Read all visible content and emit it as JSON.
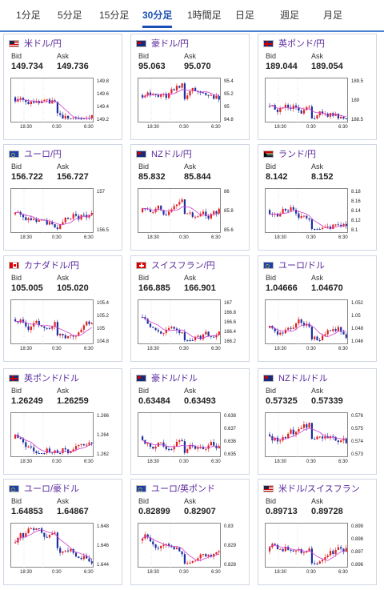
{
  "tabs": [
    "1分足",
    "5分足",
    "15分足",
    "30分足",
    "1時間足",
    "日足",
    "週足",
    "月足"
  ],
  "active_tab": "30分足",
  "labels": {
    "bid": "Bid",
    "ask": "Ask"
  },
  "colors": {
    "accent": "#1a4fb5",
    "pair_name": "#5a2a9c",
    "candle_up": "#e02020",
    "candle_down": "#1f2fa0",
    "ma_line": "#d040d0"
  },
  "cards": [
    {
      "name": "米ドル/円",
      "flag": "us",
      "bid": "149.734",
      "ask": "149.736",
      "yticks": [
        "149.8",
        "149.6",
        "149.4",
        "149.2"
      ],
      "xticks": [
        "18:30",
        "0:30",
        "6:30"
      ]
    },
    {
      "name": "豪ドル/円",
      "flag": "au",
      "bid": "95.063",
      "ask": "95.070",
      "yticks": [
        "95.4",
        "95.2",
        "95",
        "94.8"
      ],
      "xticks": [
        "18:30",
        "0:30",
        "6:30"
      ]
    },
    {
      "name": "英ポンド/円",
      "flag": "gb",
      "bid": "189.044",
      "ask": "189.054",
      "yticks": [
        "189.5",
        "189",
        "188.5"
      ],
      "xticks": [
        "18:30",
        "0:30",
        "6:30"
      ]
    },
    {
      "name": "ユーロ/円",
      "flag": "eu",
      "bid": "156.722",
      "ask": "156.727",
      "yticks": [
        "157",
        "156.5"
      ],
      "xticks": [
        "18:30",
        "0:30",
        "6:30"
      ]
    },
    {
      "name": "NZドル/円",
      "flag": "nz",
      "bid": "85.832",
      "ask": "85.844",
      "yticks": [
        "86",
        "85.8",
        "85.6"
      ],
      "xticks": [
        "18:30",
        "0:30",
        "6:30"
      ]
    },
    {
      "name": "ランド/円",
      "flag": "za",
      "bid": "8.142",
      "ask": "8.152",
      "yticks": [
        "8.18",
        "8.16",
        "8.14",
        "8.12",
        "8.1"
      ],
      "xticks": [
        "18:30",
        "0:30",
        "6:30"
      ]
    },
    {
      "name": "カナダドル/円",
      "flag": "ca",
      "bid": "105.005",
      "ask": "105.020",
      "yticks": [
        "105.4",
        "105.2",
        "105",
        "104.8"
      ],
      "xticks": [
        "18:30",
        "0:30",
        "6:30"
      ]
    },
    {
      "name": "スイスフラン/円",
      "flag": "ch",
      "bid": "166.885",
      "ask": "166.901",
      "yticks": [
        "167",
        "166.8",
        "166.6",
        "166.4",
        "166.2"
      ],
      "xticks": [
        "18:30",
        "0:30",
        "6:30"
      ]
    },
    {
      "name": "ユーロ/ドル",
      "flag": "eu",
      "bid": "1.04666",
      "ask": "1.04670",
      "yticks": [
        "1.052",
        "1.05",
        "1.048",
        "1.046"
      ],
      "xticks": [
        "18:30",
        "0:30",
        "6:30"
      ]
    },
    {
      "name": "英ポンド/ドル",
      "flag": "gb",
      "bid": "1.26249",
      "ask": "1.26259",
      "yticks": [
        "1.266",
        "1.264",
        "1.262"
      ],
      "xticks": [
        "18:30",
        "0:30",
        "6:30"
      ]
    },
    {
      "name": "豪ドル/ドル",
      "flag": "au",
      "bid": "0.63484",
      "ask": "0.63493",
      "yticks": [
        "0.638",
        "0.637",
        "0.636",
        "0.635"
      ],
      "xticks": [
        "18:30",
        "0:30",
        "6:30"
      ]
    },
    {
      "name": "NZドル/ドル",
      "flag": "nz",
      "bid": "0.57325",
      "ask": "0.57339",
      "yticks": [
        "0.576",
        "0.575",
        "0.574",
        "0.573"
      ],
      "xticks": [
        "18:30",
        "0:30",
        "6:30"
      ]
    },
    {
      "name": "ユーロ/豪ドル",
      "flag": "eu",
      "bid": "1.64853",
      "ask": "1.64867",
      "yticks": [
        "1.648",
        "1.646",
        "1.644"
      ],
      "xticks": [
        "18:30",
        "0:30",
        "6:30"
      ]
    },
    {
      "name": "ユーロ/英ポンド",
      "flag": "eu",
      "bid": "0.82899",
      "ask": "0.82907",
      "yticks": [
        "0.83",
        "0.829",
        "0.828"
      ],
      "xticks": [
        "18:30",
        "0:30",
        "6:30"
      ]
    },
    {
      "name": "米ドル/スイスフラン",
      "flag": "us",
      "bid": "0.89713",
      "ask": "0.89728",
      "yticks": [
        "0.899",
        "0.898",
        "0.897",
        "0.896"
      ],
      "xticks": [
        "18:30",
        "0:30",
        "6:30"
      ]
    }
  ]
}
